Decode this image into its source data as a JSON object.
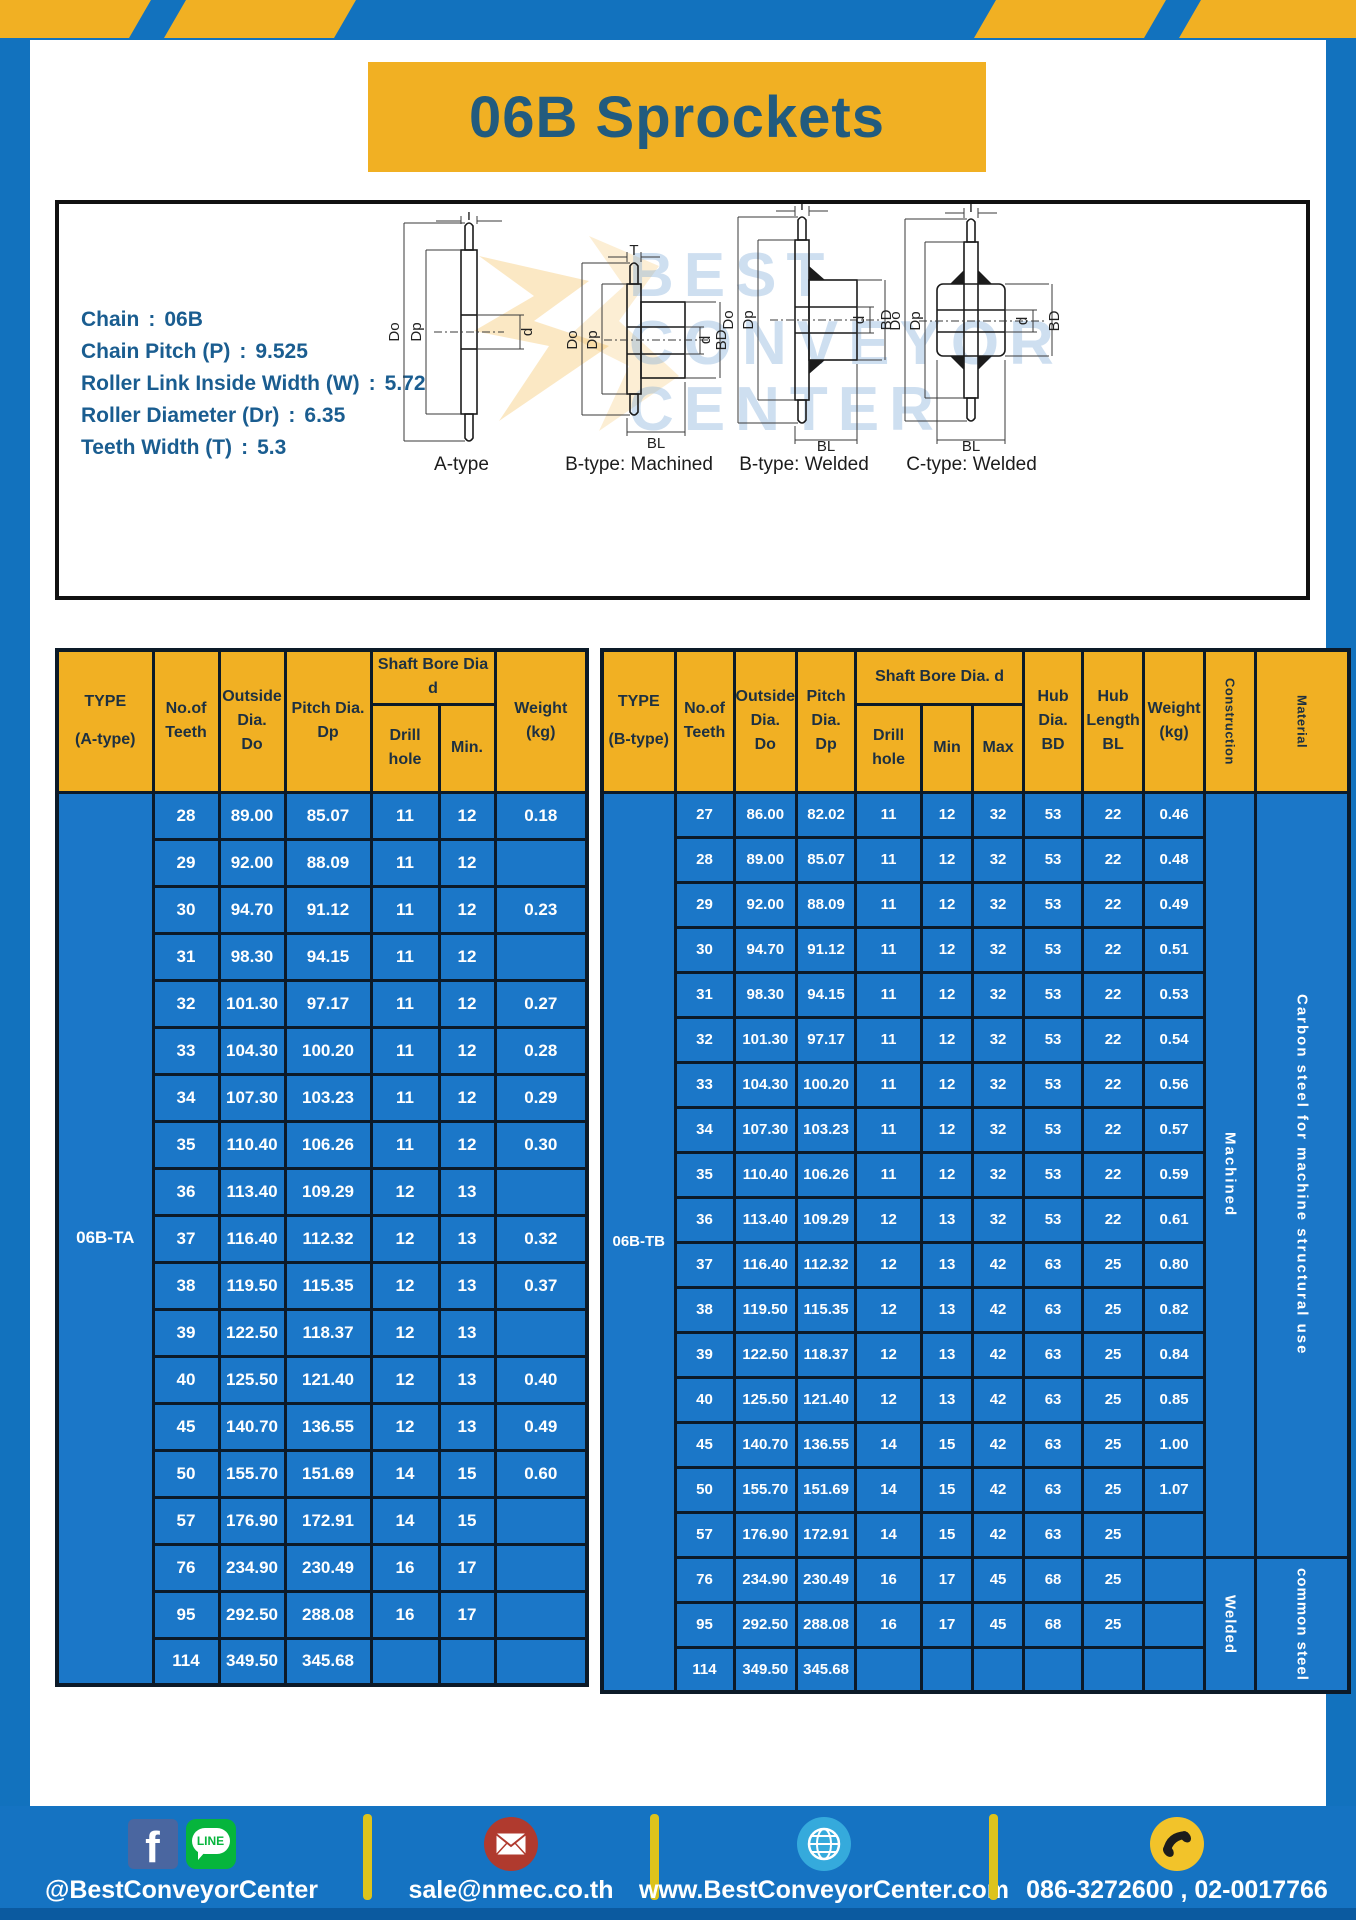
{
  "title": "06B Sprockets",
  "colors": {
    "frame_blue": "#1272be",
    "cell_blue": "#1b77c8",
    "accent_yellow": "#f1b023",
    "title_text": "#225b7e",
    "spec_text": "#1a5d90"
  },
  "specs": [
    {
      "label": "Chain",
      "value": "06B"
    },
    {
      "label": "Chain Pitch (P)",
      "value": "9.525"
    },
    {
      "label": "Roller Link Inside Width (W)",
      "value": "5.72"
    },
    {
      "label": "Roller Diameter (Dr)",
      "value": "6.35"
    },
    {
      "label": "Teeth Width (T)",
      "value": "5.3"
    }
  ],
  "watermark": {
    "line1": "BEST",
    "line2": "CONVEYOR",
    "line3": "CENTER"
  },
  "drawings": {
    "dims": {
      "t": "T",
      "do": "Do",
      "dp": "Dp",
      "d": "d",
      "bd": "BD",
      "bl": "BL"
    },
    "labels": [
      "A-type",
      "B-type: Machined",
      "B-type: Welded",
      "C-type: Welded"
    ]
  },
  "table_a": {
    "type_label": "06B-TA",
    "header": {
      "type": "TYPE\n(A-type)",
      "teeth": "No.of\nTeeth",
      "outside": "Outside\nDia.\nDo",
      "pitch": "Pitch Dia.\nDp",
      "shaft_bore": "Shaft Bore Dia d",
      "drill": "Drill hole",
      "min": "Min.",
      "weight": "Weight\n(kg)"
    },
    "rows": [
      [
        "28",
        "89.00",
        "85.07",
        "11",
        "12",
        "0.18"
      ],
      [
        "29",
        "92.00",
        "88.09",
        "11",
        "12",
        ""
      ],
      [
        "30",
        "94.70",
        "91.12",
        "11",
        "12",
        "0.23"
      ],
      [
        "31",
        "98.30",
        "94.15",
        "11",
        "12",
        ""
      ],
      [
        "32",
        "101.30",
        "97.17",
        "11",
        "12",
        "0.27"
      ],
      [
        "33",
        "104.30",
        "100.20",
        "11",
        "12",
        "0.28"
      ],
      [
        "34",
        "107.30",
        "103.23",
        "11",
        "12",
        "0.29"
      ],
      [
        "35",
        "110.40",
        "106.26",
        "11",
        "12",
        "0.30"
      ],
      [
        "36",
        "113.40",
        "109.29",
        "12",
        "13",
        ""
      ],
      [
        "37",
        "116.40",
        "112.32",
        "12",
        "13",
        "0.32"
      ],
      [
        "38",
        "119.50",
        "115.35",
        "12",
        "13",
        "0.37"
      ],
      [
        "39",
        "122.50",
        "118.37",
        "12",
        "13",
        ""
      ],
      [
        "40",
        "125.50",
        "121.40",
        "12",
        "13",
        "0.40"
      ],
      [
        "45",
        "140.70",
        "136.55",
        "12",
        "13",
        "0.49"
      ],
      [
        "50",
        "155.70",
        "151.69",
        "14",
        "15",
        "0.60"
      ],
      [
        "57",
        "176.90",
        "172.91",
        "14",
        "15",
        ""
      ],
      [
        "76",
        "234.90",
        "230.49",
        "16",
        "17",
        ""
      ],
      [
        "95",
        "292.50",
        "288.08",
        "16",
        "17",
        ""
      ],
      [
        "114",
        "349.50",
        "345.68",
        "",
        "",
        ""
      ]
    ]
  },
  "table_b": {
    "type_label": "06B-TB",
    "header": {
      "type": "TYPE\n(B-type)",
      "teeth": "No.of\nTeeth",
      "outside": "Outside\nDia.\nDo",
      "pitch": "Pitch\nDia.\nDp",
      "shaft_bore": "Shaft Bore Dia. d",
      "drill": "Drill hole",
      "min": "Min",
      "max": "Max",
      "hub_dia": "Hub\nDia.\nBD",
      "hub_len": "Hub\nLength\nBL",
      "weight": "Weight\n(kg)",
      "construction": "Construction",
      "material": "Material"
    },
    "rows": [
      [
        "27",
        "86.00",
        "82.02",
        "11",
        "12",
        "32",
        "53",
        "22",
        "0.46"
      ],
      [
        "28",
        "89.00",
        "85.07",
        "11",
        "12",
        "32",
        "53",
        "22",
        "0.48"
      ],
      [
        "29",
        "92.00",
        "88.09",
        "11",
        "12",
        "32",
        "53",
        "22",
        "0.49"
      ],
      [
        "30",
        "94.70",
        "91.12",
        "11",
        "12",
        "32",
        "53",
        "22",
        "0.51"
      ],
      [
        "31",
        "98.30",
        "94.15",
        "11",
        "12",
        "32",
        "53",
        "22",
        "0.53"
      ],
      [
        "32",
        "101.30",
        "97.17",
        "11",
        "12",
        "32",
        "53",
        "22",
        "0.54"
      ],
      [
        "33",
        "104.30",
        "100.20",
        "11",
        "12",
        "32",
        "53",
        "22",
        "0.56"
      ],
      [
        "34",
        "107.30",
        "103.23",
        "11",
        "12",
        "32",
        "53",
        "22",
        "0.57"
      ],
      [
        "35",
        "110.40",
        "106.26",
        "11",
        "12",
        "32",
        "53",
        "22",
        "0.59"
      ],
      [
        "36",
        "113.40",
        "109.29",
        "12",
        "13",
        "32",
        "53",
        "22",
        "0.61"
      ],
      [
        "37",
        "116.40",
        "112.32",
        "12",
        "13",
        "42",
        "63",
        "25",
        "0.80"
      ],
      [
        "38",
        "119.50",
        "115.35",
        "12",
        "13",
        "42",
        "63",
        "25",
        "0.82"
      ],
      [
        "39",
        "122.50",
        "118.37",
        "12",
        "13",
        "42",
        "63",
        "25",
        "0.84"
      ],
      [
        "40",
        "125.50",
        "121.40",
        "12",
        "13",
        "42",
        "63",
        "25",
        "0.85"
      ],
      [
        "45",
        "140.70",
        "136.55",
        "14",
        "15",
        "42",
        "63",
        "25",
        "1.00"
      ],
      [
        "50",
        "155.70",
        "151.69",
        "14",
        "15",
        "42",
        "63",
        "25",
        "1.07"
      ],
      [
        "57",
        "176.90",
        "172.91",
        "14",
        "15",
        "42",
        "63",
        "25",
        ""
      ],
      [
        "76",
        "234.90",
        "230.49",
        "16",
        "17",
        "45",
        "68",
        "25",
        ""
      ],
      [
        "95",
        "292.50",
        "288.08",
        "16",
        "17",
        "45",
        "68",
        "25",
        ""
      ],
      [
        "114",
        "349.50",
        "345.68",
        "",
        "",
        "",
        "",
        "",
        ""
      ]
    ],
    "spans": [
      {
        "start": 0,
        "count": 17,
        "construction": "Machined",
        "material": "Carbon steel for machine structural use"
      },
      {
        "start": 17,
        "count": 3,
        "construction": "Welded",
        "material": "common steel"
      }
    ]
  },
  "footer": {
    "line_label": "LINE",
    "facebook_letter": "f",
    "items": [
      {
        "text": "@BestConveyorCenter"
      },
      {
        "text": "sale@nmec.co.th"
      },
      {
        "text": "www.BestConveyorCenter.com"
      },
      {
        "text": "086-3272600 , 02-0017766"
      }
    ]
  }
}
